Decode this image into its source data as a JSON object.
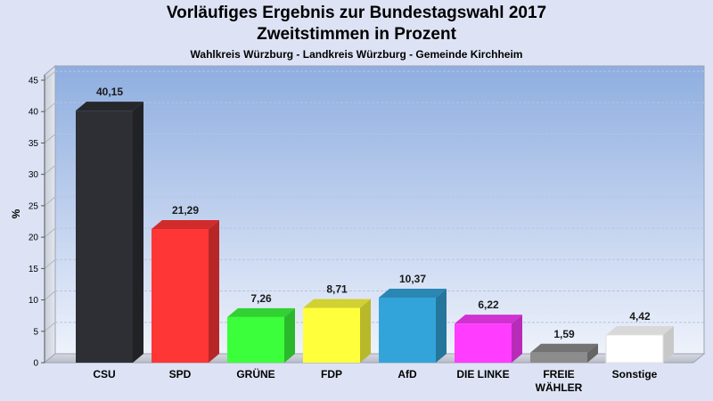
{
  "chart_data": {
    "type": "bar",
    "title": "Vorläufiges Ergebnis zur Bundestagswahl 2017",
    "subtitle": "Zweitstimmen in Prozent",
    "subtitle2": "Wahlkreis Würzburg - Landkreis Würzburg - Gemeinde Kirchheim",
    "ylabel": "%",
    "ylim": [
      0,
      45
    ],
    "yticks": [
      0,
      5,
      10,
      15,
      20,
      25,
      30,
      35,
      40,
      45
    ],
    "grid": true,
    "categories": [
      [
        "CSU"
      ],
      [
        "SPD"
      ],
      [
        "GRÜNE"
      ],
      [
        "FDP"
      ],
      [
        "AfD"
      ],
      [
        "DIE LINKE"
      ],
      [
        "FREIE",
        "WÄHLER"
      ],
      [
        "Sonstige"
      ]
    ],
    "values": [
      40.15,
      21.29,
      7.26,
      8.71,
      10.37,
      6.22,
      1.59,
      4.42
    ],
    "value_labels": [
      "40,15",
      "21,29",
      "7,26",
      "8,71",
      "10,37",
      "6,22",
      "1,59",
      "4,42"
    ],
    "colors": [
      "#2d2f35",
      "#ff3636",
      "#3cff3c",
      "#ffff3c",
      "#33a4da",
      "#ff3cff",
      "#8c8c8c",
      "#ffffff"
    ]
  }
}
